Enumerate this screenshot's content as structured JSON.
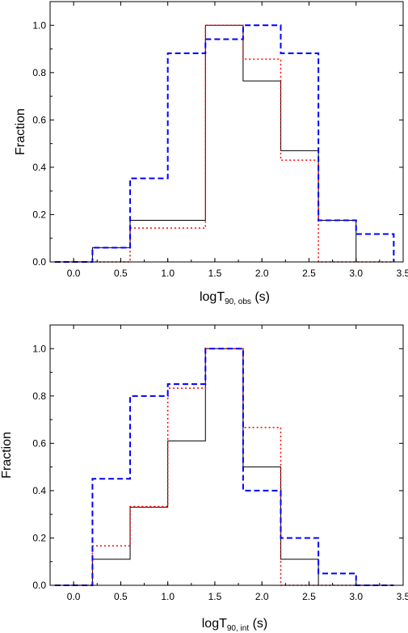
{
  "chart_data": [
    {
      "type": "line",
      "title": "",
      "xlabel_main": "logT",
      "xlabel_sub": "90, obs",
      "xlabel_unit": " (s)",
      "ylabel": "Fraction",
      "xlim": [
        -0.25,
        3.5
      ],
      "ylim": [
        0,
        1.1
      ],
      "x_ticks": [
        "0.0",
        "0.5",
        "1.0",
        "1.5",
        "2.0",
        "2.5",
        "3.0",
        "3.5"
      ],
      "y_ticks": [
        "0.0",
        "0.2",
        "0.4",
        "0.6",
        "0.8",
        "1.0"
      ],
      "grid": false,
      "series": [
        {
          "style": "solid",
          "color": "#000000",
          "edges": [
            -0.2,
            0.2,
            0.6,
            1.0,
            1.4,
            1.8,
            2.2,
            2.6,
            3.0,
            3.4
          ],
          "values": [
            0,
            0.06,
            0.176,
            0.176,
            1.0,
            0.765,
            0.47,
            0.176,
            0
          ]
        },
        {
          "style": "dotted",
          "color": "#ff0000",
          "edges": [
            -0.2,
            0.2,
            0.6,
            1.0,
            1.4,
            1.8,
            2.2,
            2.6,
            3.0,
            3.4
          ],
          "values": [
            0,
            0,
            0.143,
            0.143,
            1.0,
            0.857,
            0.43,
            0,
            0
          ]
        },
        {
          "style": "dashed",
          "color": "#0000ff",
          "edges": [
            -0.2,
            0.2,
            0.6,
            1.0,
            1.4,
            1.8,
            2.2,
            2.6,
            3.0,
            3.4
          ],
          "values": [
            0,
            0.06,
            0.353,
            0.882,
            0.941,
            1.0,
            0.882,
            0.176,
            0.118
          ]
        }
      ]
    },
    {
      "type": "line",
      "title": "",
      "xlabel_main": "logT",
      "xlabel_sub": "90, int",
      "xlabel_unit": " (s)",
      "ylabel": "Fraction",
      "xlim": [
        -0.25,
        3.5
      ],
      "ylim": [
        0,
        1.1
      ],
      "x_ticks": [
        "0.0",
        "0.5",
        "1.0",
        "1.5",
        "2.0",
        "2.5",
        "3.0",
        "3.5"
      ],
      "y_ticks": [
        "0.0",
        "0.2",
        "0.4",
        "0.6",
        "0.8",
        "1.0"
      ],
      "grid": false,
      "series": [
        {
          "style": "solid",
          "color": "#000000",
          "edges": [
            -0.2,
            0.2,
            0.6,
            1.0,
            1.4,
            1.8,
            2.2,
            2.6,
            3.0,
            3.4
          ],
          "values": [
            0,
            0.11,
            0.33,
            0.61,
            1.0,
            0.5,
            0.11,
            0,
            0
          ]
        },
        {
          "style": "dotted",
          "color": "#ff0000",
          "edges": [
            -0.2,
            0.2,
            0.6,
            1.0,
            1.4,
            1.8,
            2.2,
            2.6,
            3.0,
            3.4
          ],
          "values": [
            0,
            0.167,
            0.333,
            0.833,
            1.0,
            0.667,
            0,
            0,
            0
          ]
        },
        {
          "style": "dashed",
          "color": "#0000ff",
          "edges": [
            -0.2,
            0.2,
            0.6,
            1.0,
            1.4,
            1.8,
            2.2,
            2.6,
            3.0,
            3.4
          ],
          "values": [
            0,
            0.45,
            0.8,
            0.85,
            1.0,
            0.4,
            0.2,
            0.05,
            0
          ]
        }
      ]
    }
  ]
}
